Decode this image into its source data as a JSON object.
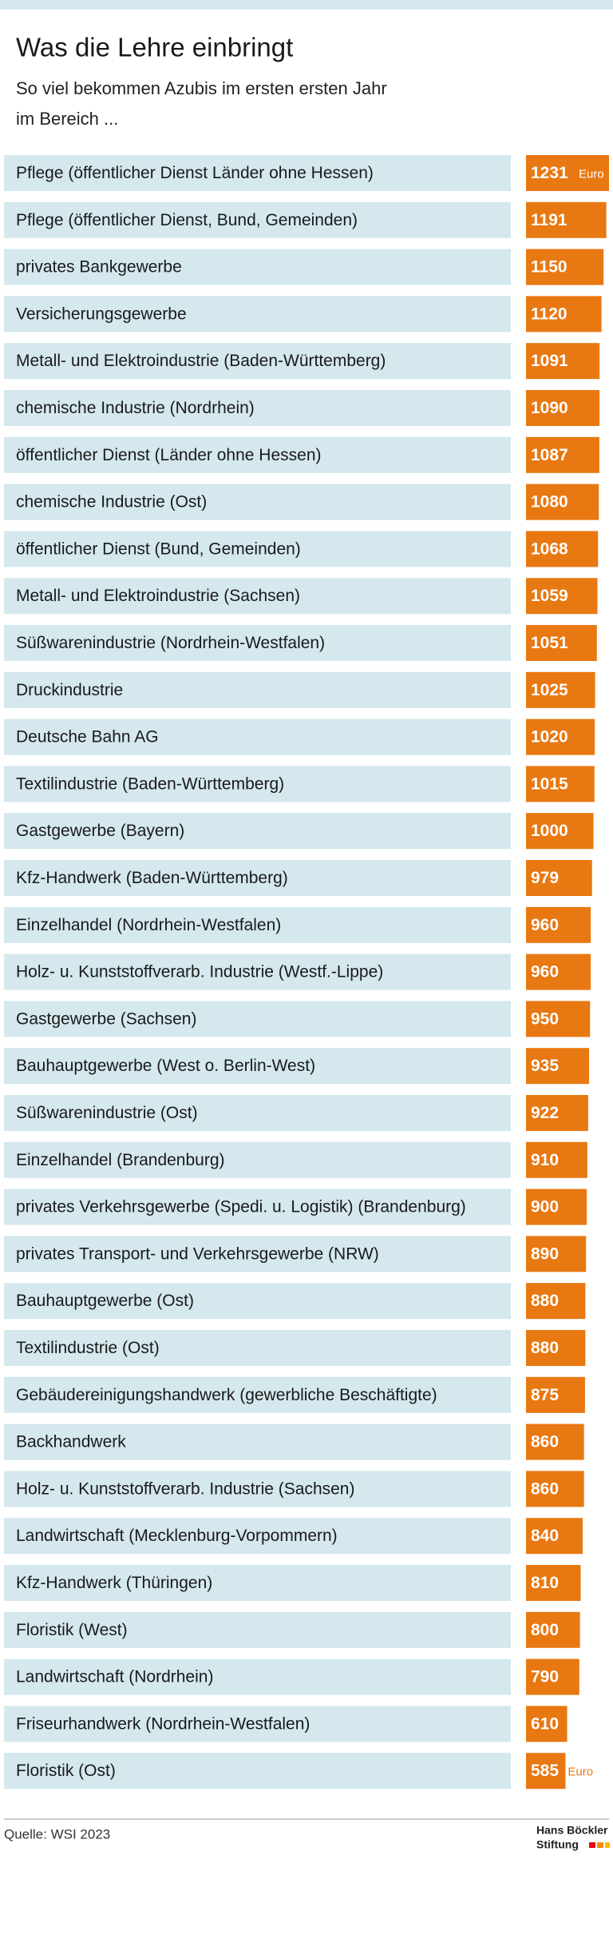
{
  "chart_data": {
    "type": "bar",
    "title": "Was die Lehre einbringt",
    "subtitle": [
      "So viel bekommen Azubis im ersten ersten Jahr",
      "im Bereich ..."
    ],
    "categories": [
      "Pflege (öffentlicher Dienst Länder ohne Hessen)",
      "Pflege (öffentlicher Dienst, Bund, Gemeinden)",
      "privates Bankgewerbe",
      "Versicherungsgewerbe",
      "Metall- und Elektroindustrie (Baden-Württemberg)",
      "chemische Industrie (Nordrhein)",
      "öffentlicher Dienst (Länder ohne Hessen)",
      "chemische Industrie (Ost)",
      "öffentlicher Dienst (Bund, Gemeinden)",
      "Metall- und Elektroindustrie (Sachsen)",
      "Süßwarenindustrie (Nordrhein-Westfalen)",
      "Druckindustrie",
      "Deutsche Bahn AG",
      "Textilindustrie (Baden-Württemberg)",
      "Gastgewerbe (Bayern)",
      "Kfz-Handwerk (Baden-Württemberg)",
      "Einzelhandel (Nordrhein-Westfalen)",
      "Holz- u. Kunststoffverarb. Industrie (Westf.-Lippe)",
      "Gastgewerbe (Sachsen)",
      "Bauhauptgewerbe (West o. Berlin-West)",
      "Süßwarenindustrie (Ost)",
      "Einzelhandel (Brandenburg)",
      "privates Verkehrsgewerbe (Spedi. u. Logistik) (Brandenburg)",
      "privates Transport- und Verkehrsgewerbe (NRW)",
      "Bauhauptgewerbe (Ost)",
      "Textilindustrie (Ost)",
      "Gebäudereinigungshandwerk (gewerbliche Beschäftigte)",
      "Backhandwerk",
      "Holz- u. Kunststoffverarb. Industrie (Sachsen)",
      "Landwirtschaft (Mecklenburg-Vorpommern)",
      "Kfz-Handwerk (Thüringen)",
      "Floristik (West)",
      "Landwirtschaft (Nordrhein)",
      "Friseurhandwerk (Nordrhein-Westfalen)",
      "Floristik (Ost)"
    ],
    "values": [
      1231,
      1191,
      1150,
      1120,
      1091,
      1090,
      1087,
      1080,
      1068,
      1059,
      1051,
      1025,
      1020,
      1015,
      1000,
      979,
      960,
      960,
      950,
      935,
      922,
      910,
      900,
      890,
      880,
      880,
      875,
      860,
      860,
      840,
      810,
      800,
      790,
      610,
      585
    ],
    "unit": "Euro",
    "color": "#e87811",
    "label_color": "#d4e8ee",
    "source": "Quelle: WSI 2023",
    "logo": [
      "Hans Böckler",
      "Stiftung"
    ]
  }
}
